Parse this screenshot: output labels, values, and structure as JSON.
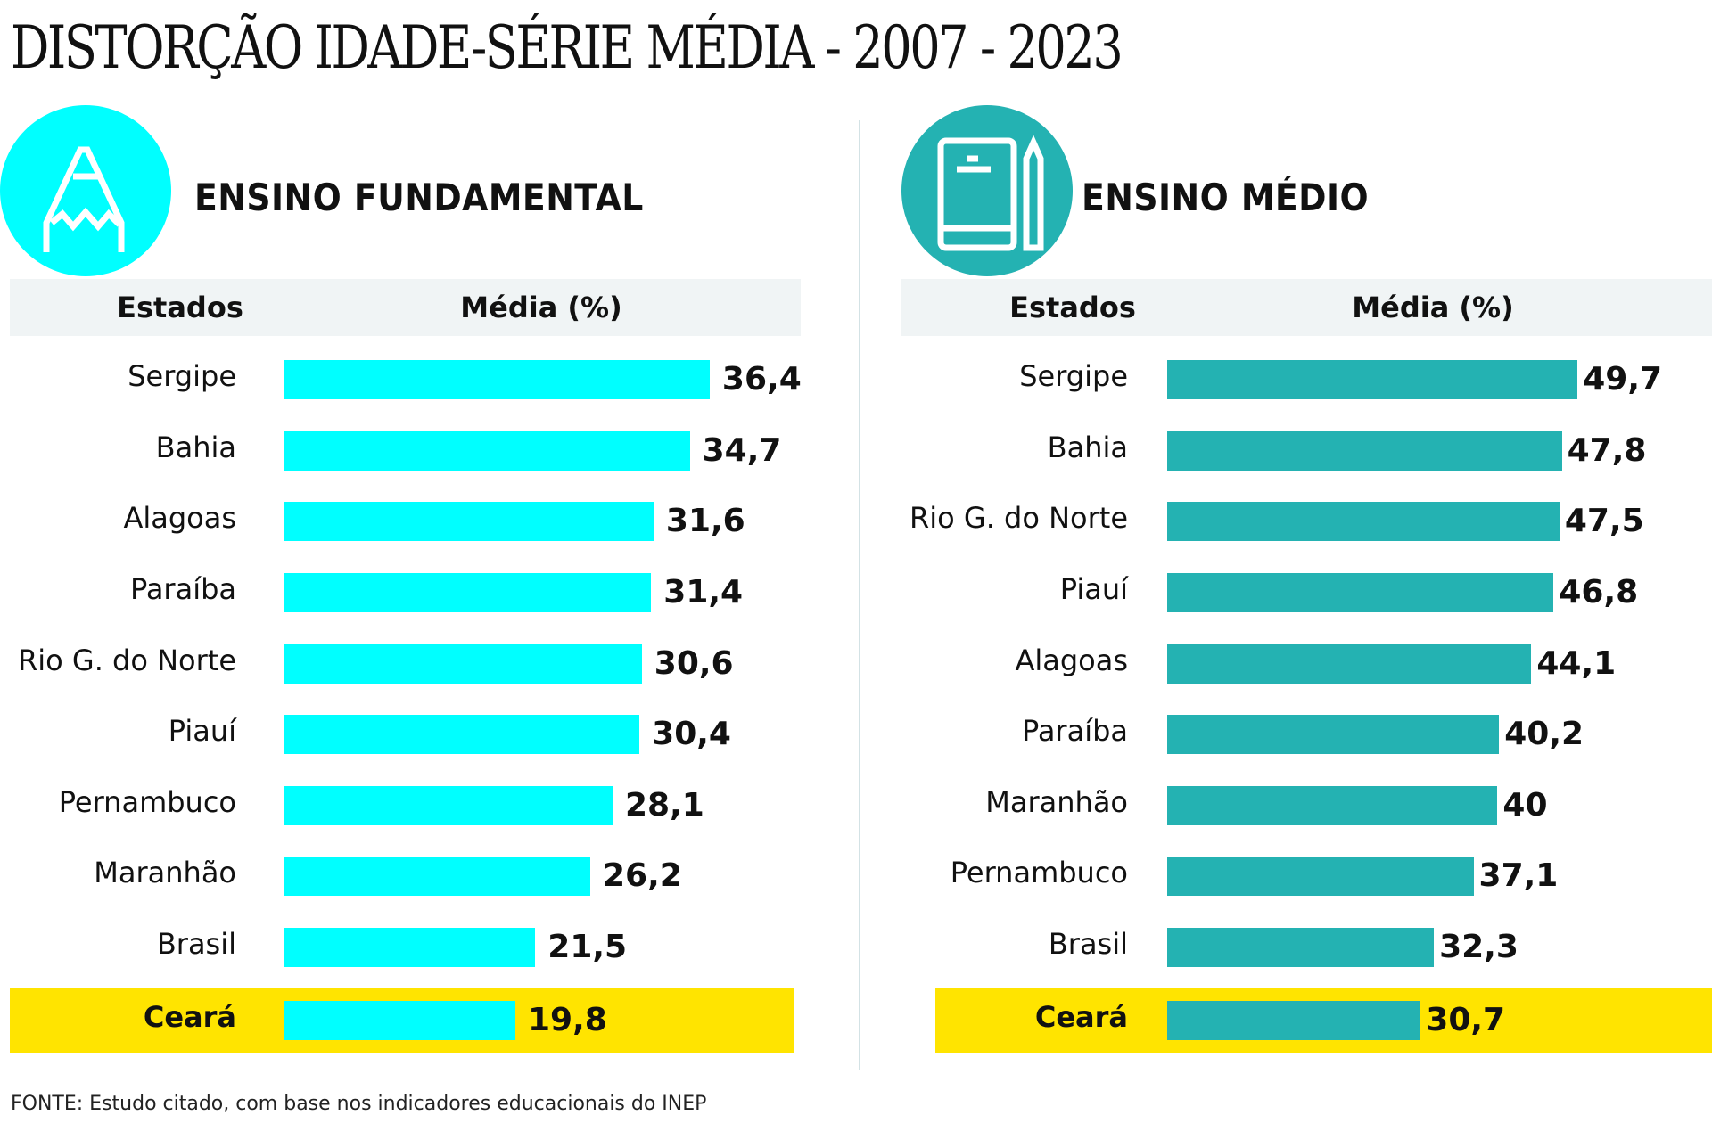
{
  "title": "DISTORÇÃO IDADE-SÉRIE MÉDIA - 2007 - 2023",
  "footer": "FONTE: Estudo citado, com base nos indicadores educacionais do INEP",
  "colors": {
    "fundamental": "#00ffff",
    "medio": "#24b2b2",
    "highlight": "#ffe400",
    "header_band": "#f0f4f5"
  },
  "panels": [
    {
      "id": "fundamental",
      "title": "ENSINO FUNDAMENTAL",
      "icon": "pencil-icon",
      "col_states": "Estados",
      "col_value": "Média (%)"
    },
    {
      "id": "medio",
      "title": "ENSINO MÉDIO",
      "icon": "book-pencil-icon",
      "col_states": "Estados",
      "col_value": "Média (%)"
    }
  ],
  "chart_data": [
    {
      "type": "bar",
      "orientation": "horizontal",
      "title": "ENSINO FUNDAMENTAL",
      "xlabel": "Média (%)",
      "ylabel": "Estados",
      "categories": [
        "Sergipe",
        "Bahia",
        "Alagoas",
        "Paraíba",
        "Rio G. do Norte",
        "Piauí",
        "Pernambuco",
        "Maranhão",
        "Brasil",
        "Ceará"
      ],
      "values": [
        36.4,
        34.7,
        31.6,
        31.4,
        30.6,
        30.4,
        28.1,
        26.2,
        21.5,
        19.8
      ],
      "labels": [
        "36,4",
        "34,7",
        "31,6",
        "31,4",
        "30,6",
        "30,4",
        "28,1",
        "26,2",
        "21,5",
        "19,8"
      ],
      "highlight": "Ceará",
      "color": "#00ffff"
    },
    {
      "type": "bar",
      "orientation": "horizontal",
      "title": "ENSINO MÉDIO",
      "xlabel": "Média (%)",
      "ylabel": "Estados",
      "categories": [
        "Sergipe",
        "Bahia",
        "Rio G. do Norte",
        "Piauí",
        "Alagoas",
        "Paraíba",
        "Maranhão",
        "Pernambuco",
        "Brasil",
        "Ceará"
      ],
      "values": [
        49.7,
        47.8,
        47.5,
        46.8,
        44.1,
        40.2,
        40,
        37.1,
        32.3,
        30.7
      ],
      "labels": [
        "49,7",
        "47,8",
        "47,5",
        "46,8",
        "44,1",
        "40,2",
        "40",
        "37,1",
        "32,3",
        "30,7"
      ],
      "highlight": "Ceará",
      "color": "#24b2b2"
    }
  ]
}
